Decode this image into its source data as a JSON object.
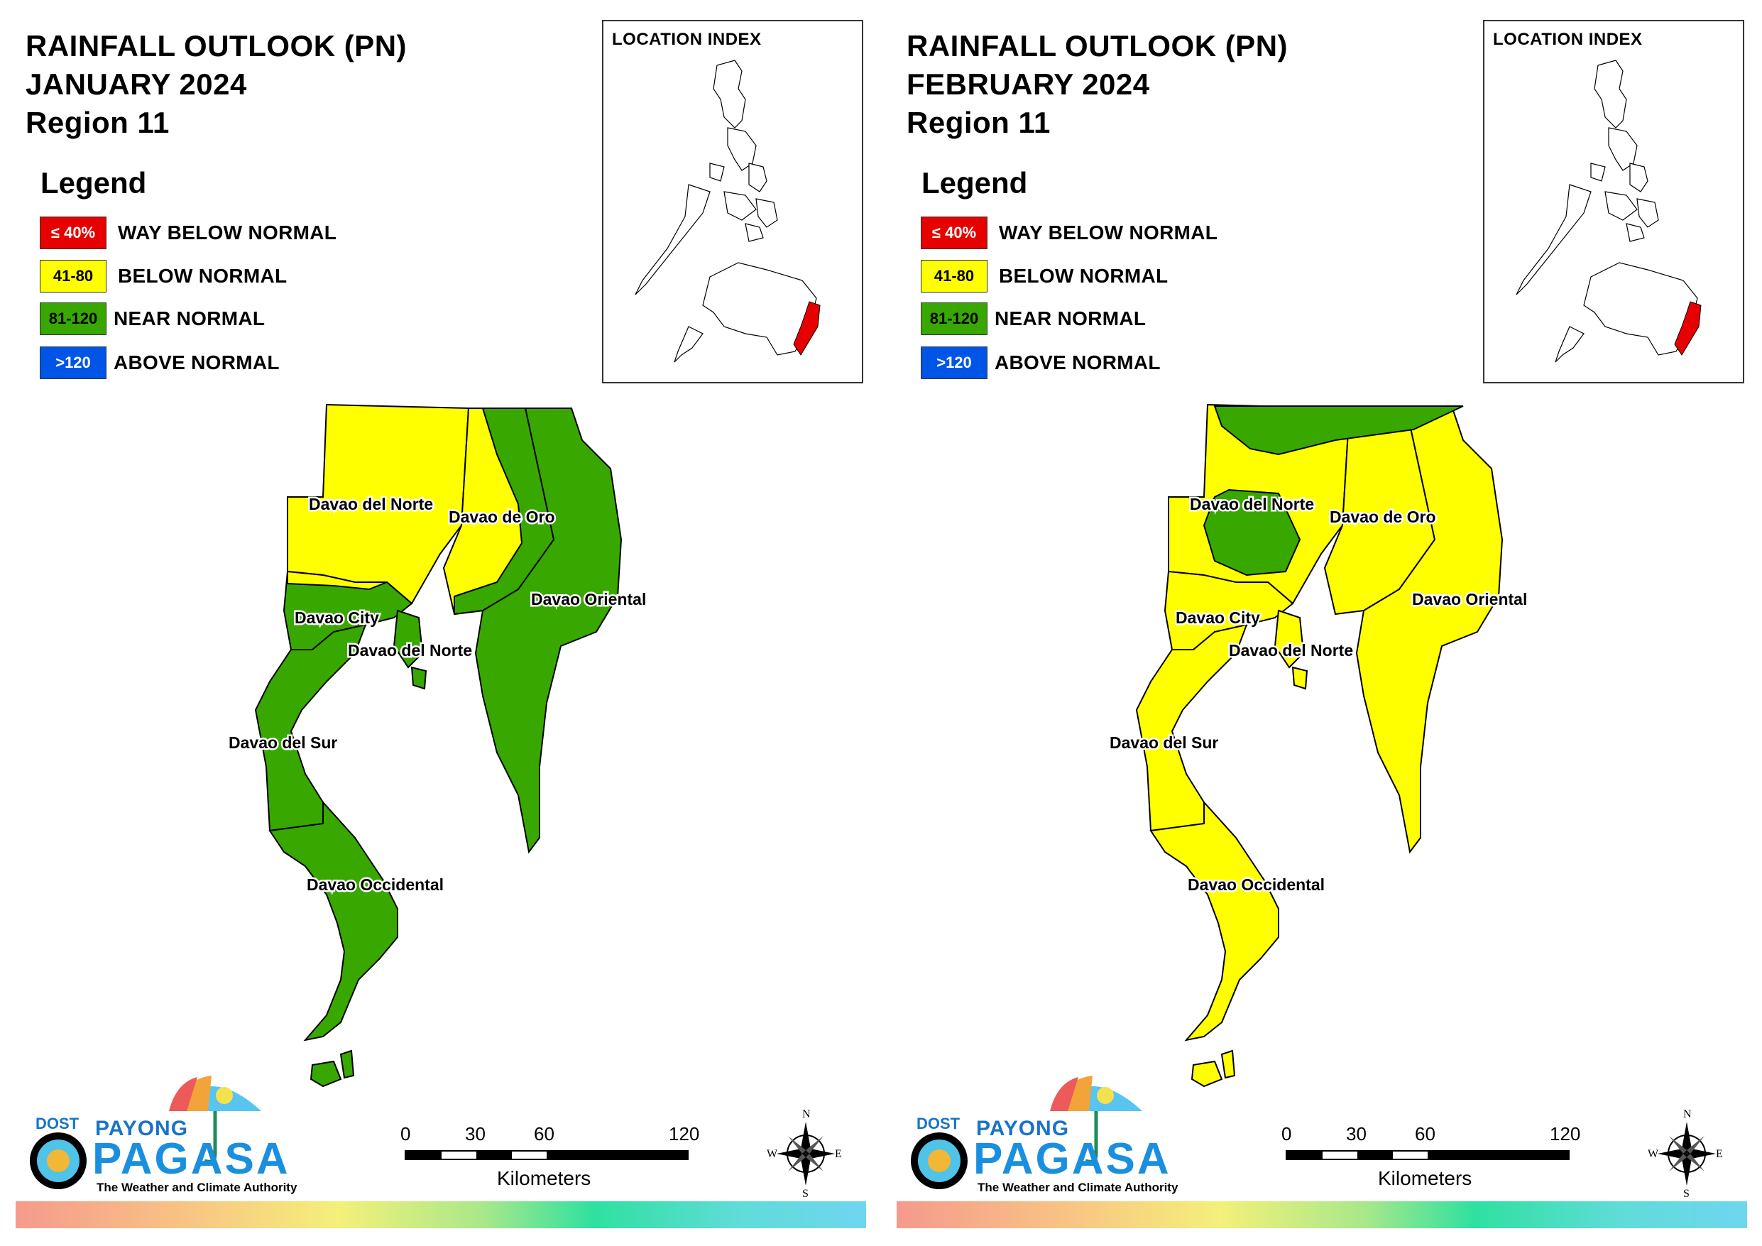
{
  "panels": [
    {
      "title_line1": "RAINFALL OUTLOOK (PN)",
      "title_line2": "JANUARY 2024",
      "title_line3": "Region 11",
      "month": "JANUARY 2024",
      "dominant_category": "NEAR NORMAL",
      "provinces": {
        "davao_del_norte": "Davao del Norte",
        "davao_de_oro": "Davao de Oro",
        "davao_city": "Davao City",
        "davao_del_norte_2": "Davao del Norte",
        "davao_oriental": "Davao Oriental",
        "davao_del_sur": "Davao del Sur",
        "davao_occidental": "Davao Occidental"
      }
    },
    {
      "title_line1": "RAINFALL OUTLOOK (PN)",
      "title_line2": "FEBRUARY 2024",
      "title_line3": "Region 11",
      "month": "FEBRUARY 2024",
      "dominant_category": "BELOW NORMAL",
      "provinces": {
        "davao_del_norte": "Davao del Norte",
        "davao_de_oro": "Davao de Oro",
        "davao_city": "Davao City",
        "davao_del_norte_2": "Davao del Norte",
        "davao_oriental": "Davao Oriental",
        "davao_del_sur": "Davao del Sur",
        "davao_occidental": "Davao Occidental"
      }
    }
  ],
  "legend": {
    "heading": "Legend",
    "items": [
      {
        "range": "≤ 40%",
        "label": "WAY BELOW NORMAL",
        "color": "#e60000",
        "text_color": "#ffffff"
      },
      {
        "range": "41-80",
        "label": "BELOW NORMAL",
        "color": "#ffff00",
        "text_color": "#000000"
      },
      {
        "range": "81-120",
        "label": "NEAR NORMAL",
        "color": "#38a800",
        "text_color": "#000000"
      },
      {
        "range": ">120",
        "label": "ABOVE NORMAL",
        "color": "#0055e6",
        "text_color": "#ffffff"
      }
    ]
  },
  "location_index": {
    "title": "LOCATION INDEX",
    "highlight_color": "#e60000"
  },
  "colors": {
    "yellow": "#ffff00",
    "green": "#38a800"
  },
  "scale": {
    "ticks": [
      "0",
      "30",
      "60",
      "120"
    ],
    "unit": "Kilometers"
  },
  "compass": {
    "n": "N",
    "s": "S",
    "e": "E",
    "w": "W"
  },
  "logo": {
    "dost": "DOST",
    "payong": "PAYONG",
    "pagasa": "PAGASA",
    "tagline": "The Weather and Climate Authority"
  }
}
